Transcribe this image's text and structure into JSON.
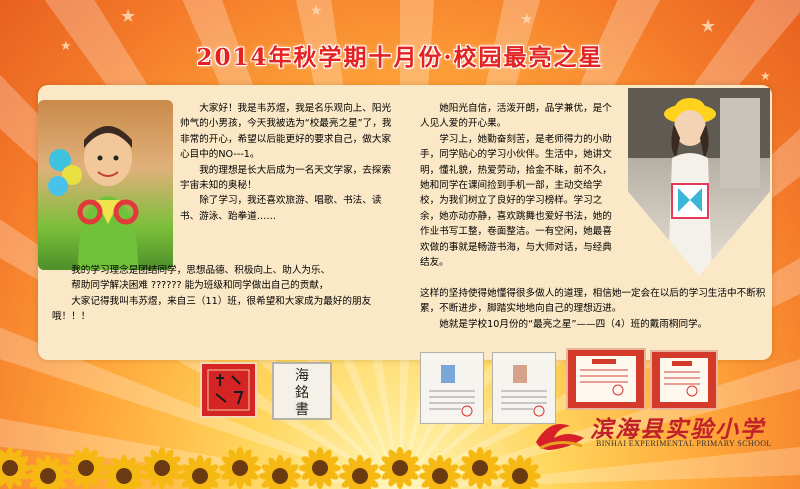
{
  "title": "2014年秋学期十月份·校园最亮之星",
  "left_column": {
    "paragraphs_top": [
      "大家好！我是韦苏煜，我是名乐观向上、阳光帅气的小男孩，今天我被选为“校最亮之星”了，我非常的开心，希望以后能更好的要求自己，做大家心目中的NO---1。",
      "我的理想是长大后成为一名天文学家，去探索宇宙未知的奥秘！",
      "除了学习，我还喜欢旅游、唱歌、书法、读书、游泳、跆拳道……"
    ],
    "paragraphs_full": [
      "我的学习理念是团结同学，思想品德、积极向上、助人为乐、",
      "帮助同学解决困难 ?????? 能为班级和同学做出自己的贡献，",
      "大家记得我叫韦苏煜，来自三（11）班，很希望和大家成为最好的朋友哦！！！"
    ]
  },
  "right_column": {
    "paragraphs_top": [
      "她阳光自信，活泼开朗，品学兼优，是个人见人爱的开心果。",
      "学习上，她勤奋刻苦，是老师得力的小助手，同学贴心的学习小伙伴。生活中，她讲文明，懂礼貌，热爱劳动，拾金不昧，前不久，她和同学在课间捡到手机一部，主动交给学校，为我们树立了良好的学习榜样。学习之余，她亦动亦静，喜欢跳舞也爱好书法，她的作业书写工整，卷面整洁。一有空闲，她最喜欢做的事就是畅游书海，与大师对话，与经典结友。"
    ],
    "paragraphs_full": [
      "这样的坚持使得她懂得很多做人的道理，相信她一定会在以后的学习生活中不断积累，不断进步，脚踏实地地向自己的理想迈进。",
      "她就是学校10月份的“最亮之星”——四（4）班的戴雨桐同学。"
    ]
  },
  "calligraphy": [
    "海",
    "銘",
    "書",
    "書"
  ],
  "school": {
    "name": "滨海县实验小学",
    "name_en": "BINHAI EXPERIMENTAL PRIMARY SCHOOL"
  },
  "colors": {
    "title_red": "#e32222",
    "paper": "#fbe8c6",
    "logo_red": "#c0202a"
  },
  "icons": [
    "star-icon",
    "sunflower-icon",
    "wave-logo-icon"
  ]
}
